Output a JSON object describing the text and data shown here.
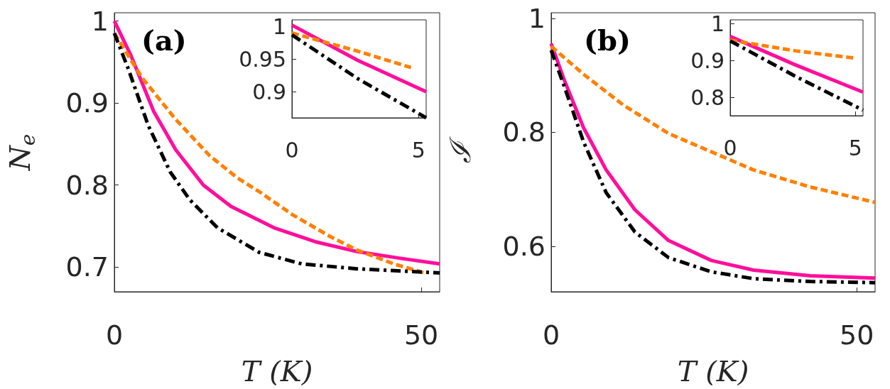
{
  "chart_data": [
    {
      "type": "line",
      "xlabel": "T (K)",
      "ylabel": "N$_{e}$",
      "annotations": [
        "(a)"
      ],
      "xlim": [
        0,
        53
      ],
      "xticks": [
        0,
        50
      ],
      "ylim": [
        0.67,
        1.01
      ],
      "yticks": [
        0.7,
        0.8,
        0.9,
        1
      ],
      "grid": false,
      "series": [
        {
          "color": "#ff0f9b",
          "line_style": "solid",
          "x": [
            0,
            2.7,
            6.4,
            10,
            14.5,
            19,
            26,
            32.7,
            39.5,
            46.4,
            53
          ],
          "values": [
            1.0,
            0.958,
            0.89,
            0.843,
            0.8,
            0.774,
            0.748,
            0.731,
            0.719,
            0.711,
            0.704
          ]
        },
        {
          "color": "#ff8000",
          "line_style": "dashed",
          "x": [
            0,
            4.5,
            10,
            15.5,
            20,
            23.6,
            29,
            35,
            39.5,
            45.5,
            50.5
          ],
          "values": [
            0.985,
            0.931,
            0.88,
            0.836,
            0.809,
            0.792,
            0.764,
            0.738,
            0.721,
            0.704,
            0.693
          ]
        },
        {
          "color": "#000000",
          "line_style": "dashdot",
          "x": [
            0,
            2.3,
            5.5,
            9.1,
            12.3,
            16.8,
            23.6,
            30.5,
            39.5,
            53
          ],
          "values": [
            0.985,
            0.941,
            0.873,
            0.816,
            0.782,
            0.748,
            0.718,
            0.704,
            0.698,
            0.693
          ]
        }
      ]
    },
    {
      "type": "line",
      "xlim": [
        0,
        5.3
      ],
      "xticks": [
        0,
        5
      ],
      "ylim": [
        0.86,
        1.01
      ],
      "yticks": [
        0.9,
        0.95,
        1
      ],
      "grid": false,
      "series": [
        {
          "color": "#ff0f9b",
          "line_style": "solid",
          "x": [
            0,
            2.6,
            5.3
          ],
          "values": [
            1.002,
            0.948,
            0.9
          ]
        },
        {
          "color": "#ff8000",
          "line_style": "dashed",
          "x": [
            0,
            2.6,
            4.7
          ],
          "values": [
            0.99,
            0.962,
            0.937
          ]
        },
        {
          "color": "#000000",
          "line_style": "dashdot",
          "x": [
            0,
            2.6,
            5.3
          ],
          "values": [
            0.987,
            0.92,
            0.86
          ]
        }
      ]
    },
    {
      "type": "line",
      "xlabel": "T (K)",
      "ylabel": "ℐ",
      "annotations": [
        "(b)"
      ],
      "xlim": [
        0,
        53
      ],
      "xticks": [
        0,
        50
      ],
      "ylim": [
        0.52,
        1.01
      ],
      "yticks": [
        0.6,
        0.8,
        1
      ],
      "grid": false,
      "series": [
        {
          "color": "#ff0f9b",
          "line_style": "solid",
          "x": [
            0,
            2.1,
            5.3,
            9,
            13.7,
            19.2,
            26.2,
            33.1,
            42.4,
            53
          ],
          "values": [
            0.956,
            0.893,
            0.808,
            0.734,
            0.664,
            0.61,
            0.575,
            0.558,
            0.548,
            0.544
          ]
        },
        {
          "color": "#ff8000",
          "line_style": "dashed",
          "x": [
            0,
            5.3,
            11.8,
            19.2,
            26.6,
            33.1,
            42.4,
            53
          ],
          "values": [
            0.951,
            0.902,
            0.848,
            0.798,
            0.764,
            0.734,
            0.704,
            0.677
          ]
        },
        {
          "color": "#000000",
          "line_style": "dashdot",
          "x": [
            0,
            2.1,
            5.3,
            9,
            13.7,
            19.2,
            26.2,
            33.1,
            42.4,
            53
          ],
          "values": [
            0.944,
            0.882,
            0.783,
            0.694,
            0.625,
            0.58,
            0.555,
            0.543,
            0.538,
            0.536
          ]
        }
      ]
    },
    {
      "type": "line",
      "xlim": [
        0,
        5.3
      ],
      "xticks": [
        0,
        5
      ],
      "ylim": [
        0.75,
        1.01
      ],
      "yticks": [
        0.8,
        0.9,
        1
      ],
      "grid": false,
      "series": [
        {
          "color": "#ff0f9b",
          "line_style": "solid",
          "x": [
            0,
            2.6,
            5.3
          ],
          "values": [
            0.965,
            0.888,
            0.814
          ]
        },
        {
          "color": "#ff8000",
          "line_style": "dashed",
          "x": [
            0,
            2.6,
            5
          ],
          "values": [
            0.955,
            0.926,
            0.906
          ]
        },
        {
          "color": "#000000",
          "line_style": "dashdot",
          "x": [
            0,
            2.6,
            5.3
          ],
          "values": [
            0.953,
            0.857,
            0.765
          ]
        }
      ]
    }
  ]
}
